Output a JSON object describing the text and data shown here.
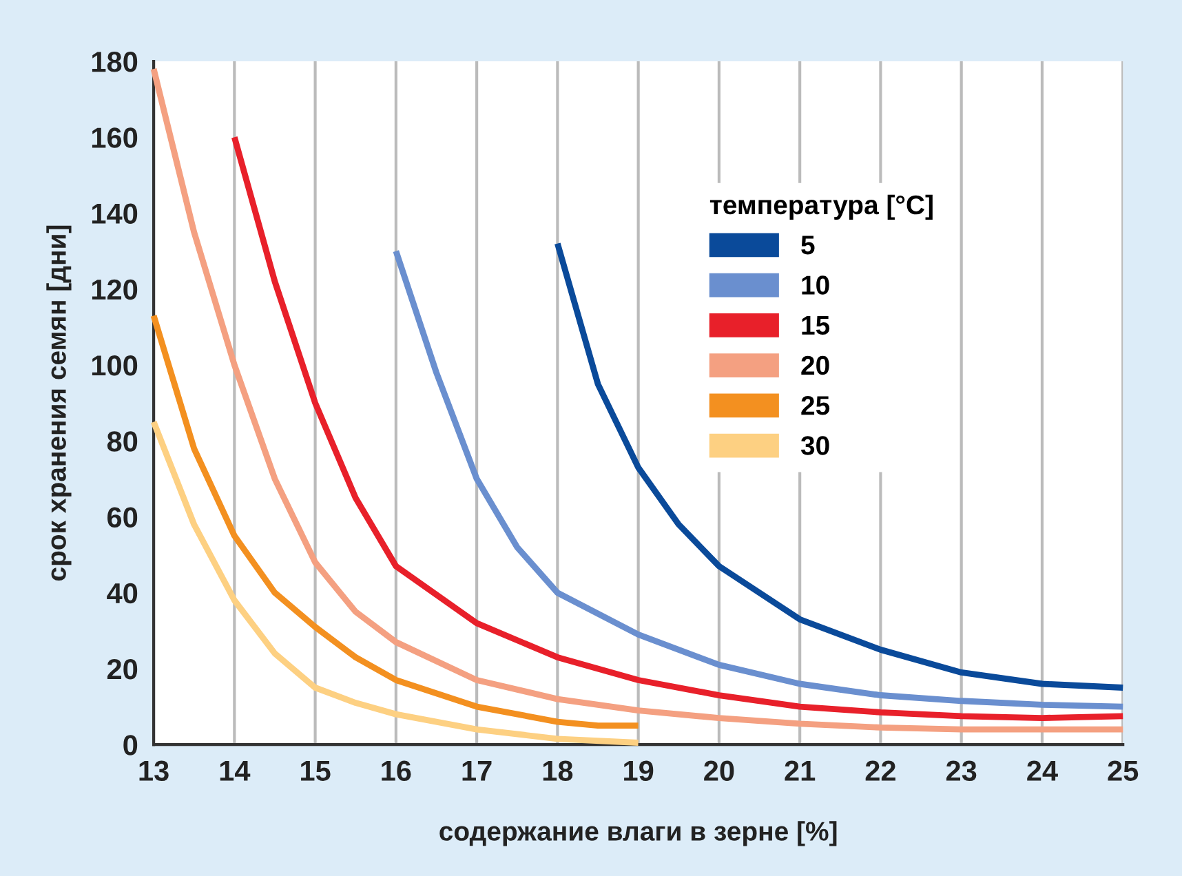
{
  "chart_data": {
    "type": "line",
    "xlabel": "содержание влаги в зерне [%]",
    "ylabel": "срок хранения семян [дни]",
    "legend_title": "температура [°C]",
    "xlim": [
      13,
      25
    ],
    "xticks": [
      13,
      14,
      15,
      16,
      17,
      18,
      19,
      20,
      21,
      22,
      23,
      24,
      25
    ],
    "ylim": [
      0,
      180
    ],
    "yticks": [
      0,
      20,
      40,
      60,
      80,
      100,
      120,
      140,
      160,
      180
    ],
    "grid": "x",
    "legend": "top right",
    "marker": "none",
    "line_style": "solid",
    "series": [
      {
        "name": "5",
        "color": "#0a4a9a",
        "x": [
          18,
          18.5,
          19,
          19.5,
          20,
          21,
          22,
          23,
          24,
          25
        ],
        "values": [
          132,
          95,
          73,
          58,
          47,
          33,
          25,
          19,
          16,
          15
        ]
      },
      {
        "name": "10",
        "color": "#6a8fcf",
        "x": [
          16,
          16.5,
          17,
          17.5,
          18,
          19,
          20,
          21,
          22,
          23,
          24,
          25
        ],
        "values": [
          130,
          98,
          70,
          52,
          40,
          29,
          21,
          16,
          13,
          11.5,
          10.5,
          10
        ]
      },
      {
        "name": "15",
        "color": "#e8202a",
        "x": [
          14,
          14.5,
          15,
          15.5,
          16,
          17,
          18,
          19,
          20,
          21,
          22,
          23,
          24,
          25
        ],
        "values": [
          160,
          122,
          90,
          65,
          47,
          32,
          23,
          17,
          13,
          10,
          8.5,
          7.5,
          7,
          7.5
        ]
      },
      {
        "name": "20",
        "color": "#f4a081",
        "x": [
          13,
          13.5,
          14,
          14.5,
          15,
          15.5,
          16,
          17,
          18,
          19,
          20,
          21,
          22,
          23,
          24,
          25
        ],
        "values": [
          178,
          135,
          100,
          70,
          48,
          35,
          27,
          17,
          12,
          9,
          7,
          5.5,
          4.5,
          4,
          4,
          4
        ]
      },
      {
        "name": "25",
        "color": "#f39020",
        "x": [
          13,
          13.5,
          14,
          14.5,
          15,
          15.5,
          16,
          17,
          18,
          18.5,
          19
        ],
        "values": [
          113,
          78,
          55,
          40,
          31,
          23,
          17,
          10,
          6,
          5,
          5
        ]
      },
      {
        "name": "30",
        "color": "#fdd082",
        "x": [
          13,
          13.5,
          14,
          14.5,
          15,
          15.5,
          16,
          17,
          18,
          19
        ],
        "values": [
          85,
          58,
          38,
          24,
          15,
          11,
          8,
          4,
          1.5,
          0.5
        ]
      }
    ]
  }
}
